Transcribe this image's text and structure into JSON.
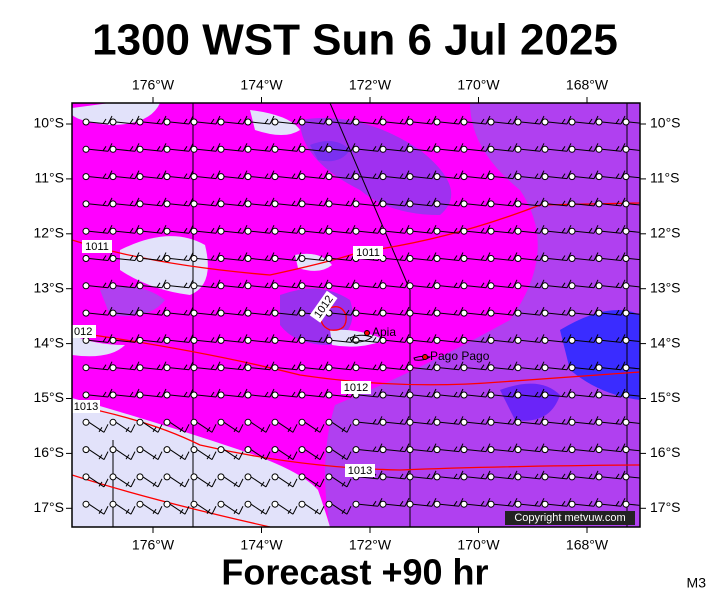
{
  "title": "1300 WST Sun 6 Jul 2025",
  "footer": "Forecast +90 hr",
  "model": "M3",
  "copyright": "Copyright metvuw.com",
  "longitudes": [
    "176°W",
    "174°W",
    "172°W",
    "170°W",
    "168°W"
  ],
  "latitudes": [
    "10°S",
    "11°S",
    "12°S",
    "13°S",
    "14°S",
    "15°S",
    "16°S",
    "17°S"
  ],
  "isobar_labels": [
    "1011",
    "1011",
    "1012",
    "012",
    "1012",
    "1013",
    "1013"
  ],
  "places": [
    "Apia",
    "Pago Pago"
  ]
}
